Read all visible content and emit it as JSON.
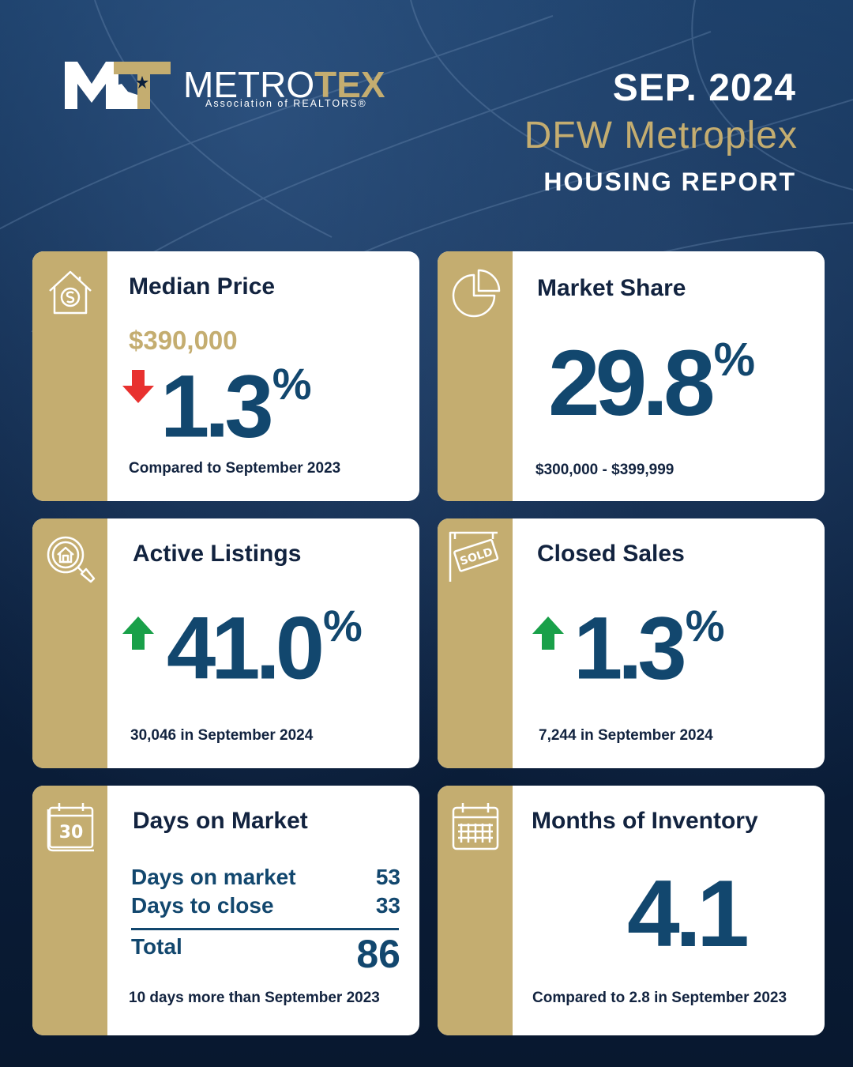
{
  "brand": {
    "logo_letters": "MT",
    "name_part1": "METRO",
    "name_part2": "TEX",
    "subtitle": "Association of REALTORS®"
  },
  "header": {
    "date": "SEP. 2024",
    "region": "DFW Metroplex",
    "report_title": "HOUSING REPORT"
  },
  "colors": {
    "navy": "#0b1f3c",
    "gold": "#c4ad70",
    "value_blue": "#12476e",
    "down_red": "#e8312f",
    "up_green": "#19a049"
  },
  "cards": {
    "median_price": {
      "icon": "house-dollar-icon",
      "title": "Median Price",
      "price": "$390,000",
      "change": "1.3",
      "direction": "down",
      "unit": "%",
      "note": "Compared to September 2023"
    },
    "market_share": {
      "icon": "pie-chart-icon",
      "title": "Market Share",
      "value": "29.8",
      "unit": "%",
      "note": "$300,000 - $399,999"
    },
    "active_listings": {
      "icon": "search-house-icon",
      "title": "Active Listings",
      "change": "41.0",
      "direction": "up",
      "unit": "%",
      "note": "30,046 in September 2024"
    },
    "closed_sales": {
      "icon": "sold-sign-icon",
      "title": "Closed Sales",
      "change": "1.3",
      "direction": "up",
      "unit": "%",
      "note": "7,244 in September 2024"
    },
    "days_on_market": {
      "icon": "calendar-30-icon",
      "icon_text": "30",
      "title": "Days on Market",
      "rows": [
        {
          "label": "Days on market",
          "value": "53"
        },
        {
          "label": "Days to close",
          "value": "33"
        }
      ],
      "total_label": "Total",
      "total_value": "86",
      "note": "10 days more than September 2023"
    },
    "months_inventory": {
      "icon": "calendar-grid-icon",
      "title": "Months of Inventory",
      "value": "4.1",
      "note": "Compared to 2.8 in September 2023"
    }
  }
}
